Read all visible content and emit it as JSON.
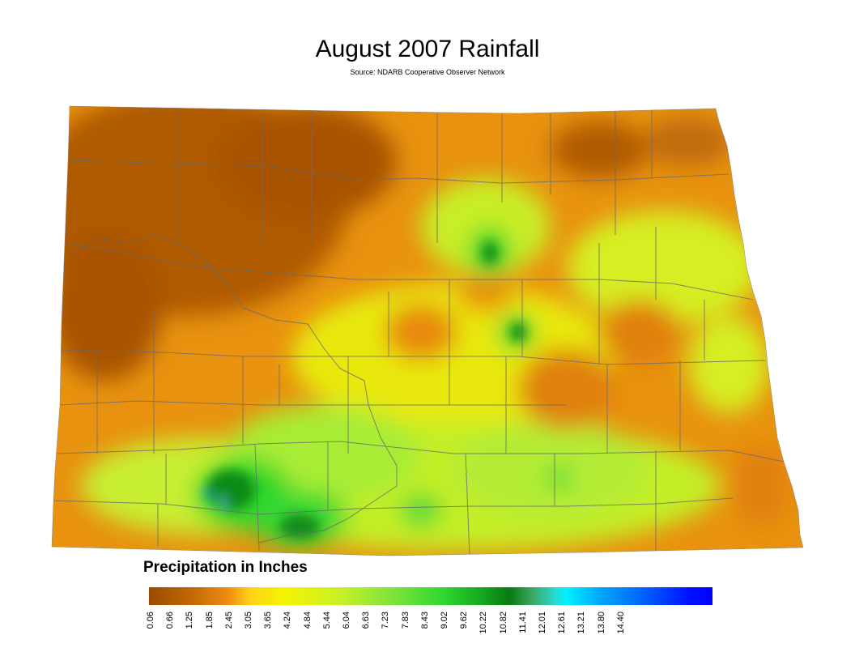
{
  "title": "August 2007 Rainfall",
  "subtitle": "Source: NDARB Cooperative Observer Network",
  "legend": {
    "title": "Precipitation in Inches",
    "ticks": [
      "0.06",
      "0.66",
      "1.25",
      "1.85",
      "2.45",
      "3.05",
      "3.65",
      "4.24",
      "4.84",
      "5.44",
      "6.04",
      "6.63",
      "7.23",
      "7.83",
      "8.43",
      "9.02",
      "9.62",
      "10.22",
      "10.82",
      "11.41",
      "12.01",
      "12.61",
      "13.21",
      "13.80",
      "14.40"
    ],
    "colors": {
      "dry": "#9c4a00",
      "orange": "#e8850a",
      "yellow": "#f2f200",
      "yellowgreen": "#b8f035",
      "green": "#2ad62a",
      "darkgreen": "#0a7a14",
      "cyan": "#00f0ff",
      "blue": "#0000ff"
    }
  },
  "map": {
    "region": "North Dakota",
    "colors": {
      "boundary": "#6a6a6a"
    }
  }
}
